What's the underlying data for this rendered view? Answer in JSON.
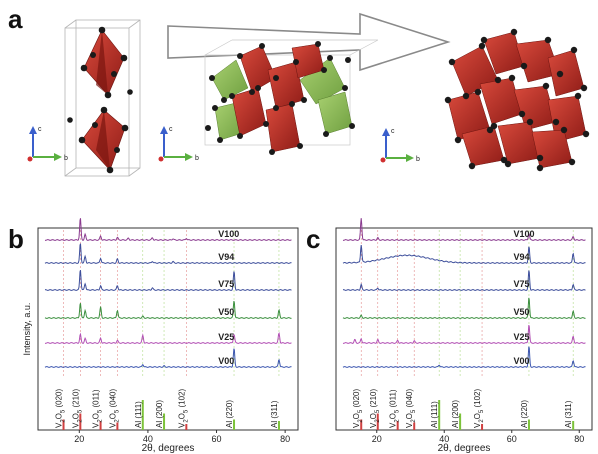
{
  "figure": {
    "panel_labels": [
      "a",
      "b",
      "c"
    ],
    "axes_triads": [
      {
        "c": "c",
        "b": "b"
      },
      {
        "c": "c",
        "b": "b"
      },
      {
        "c": "c",
        "b": "b"
      }
    ],
    "colors": {
      "octahedron_red": "#c0322a",
      "octahedron_dark": "#8e1c17",
      "octahedron_green": "#8fbf5a",
      "atom_black": "#1a1a1a",
      "arrow_outline": "#8a8a8a"
    }
  },
  "chart_data": [
    {
      "panel": "b",
      "type": "line",
      "xlabel": "2θ, degrees",
      "ylabel": "Intensity, a.u.",
      "xlim": [
        10,
        82
      ],
      "x_ticks": [
        "20",
        "40",
        "60",
        "80"
      ],
      "series": [
        {
          "name": "V100",
          "color": "#8a3a8f",
          "peaks": [
            [
              20.3,
              1.0
            ],
            [
              21.7,
              0.25
            ],
            [
              26.2,
              0.18
            ],
            [
              31.1,
              0.12
            ],
            [
              34.3,
              0.08
            ],
            [
              41.3,
              0.1
            ],
            [
              47.3,
              0.06
            ],
            [
              51.2,
              0.08
            ]
          ]
        },
        {
          "name": "V94",
          "color": "#3d4e9b",
          "peaks": [
            [
              20.3,
              0.9
            ],
            [
              21.7,
              0.3
            ],
            [
              26.2,
              0.22
            ],
            [
              31.1,
              0.18
            ],
            [
              41.3,
              0.08
            ],
            [
              47.3,
              0.06
            ]
          ]
        },
        {
          "name": "V75",
          "color": "#3d4e9b",
          "peaks": [
            [
              20.3,
              0.95
            ],
            [
              21.7,
              0.3
            ],
            [
              26.2,
              0.2
            ],
            [
              31.1,
              0.2
            ],
            [
              41.3,
              0.1
            ],
            [
              65.1,
              0.85
            ]
          ]
        },
        {
          "name": "V50",
          "color": "#3b8f3e",
          "peaks": [
            [
              20.3,
              0.7
            ],
            [
              21.7,
              0.35
            ],
            [
              26.2,
              0.5
            ],
            [
              31.1,
              0.35
            ],
            [
              38.5,
              0.08
            ],
            [
              65.1,
              0.8
            ],
            [
              78.2,
              0.35
            ]
          ]
        },
        {
          "name": "V25",
          "color": "#b24fb4",
          "peaks": [
            [
              20.3,
              0.4
            ],
            [
              21.7,
              0.2
            ],
            [
              26.2,
              0.22
            ],
            [
              31.1,
              0.12
            ],
            [
              38.5,
              0.35
            ],
            [
              65.1,
              0.4
            ],
            [
              78.2,
              0.45
            ]
          ]
        },
        {
          "name": "V00",
          "color": "#3d57b0",
          "peaks": [
            [
              38.5,
              0.12
            ],
            [
              44.7,
              0.05
            ],
            [
              65.1,
              0.85
            ],
            [
              78.2,
              0.35
            ]
          ]
        }
      ],
      "references": [
        {
          "label_pre": "V",
          "sub1": "2",
          "mid": "O",
          "sub2": "5",
          "hkl": "(020)",
          "x": 15.4,
          "height": 0.35,
          "color": "#d04040"
        },
        {
          "label_pre": "V",
          "sub1": "2",
          "mid": "O",
          "sub2": "5",
          "hkl": "(210)",
          "x": 20.3,
          "height": 0.55,
          "color": "#d04040"
        },
        {
          "label_pre": "V",
          "sub1": "2",
          "mid": "O",
          "sub2": "5",
          "hkl": "(011)",
          "x": 26.2,
          "height": 0.3,
          "color": "#d04040"
        },
        {
          "label_pre": "V",
          "sub1": "2",
          "mid": "O",
          "sub2": "5",
          "hkl": "(040)",
          "x": 31.1,
          "height": 0.25,
          "color": "#d04040"
        },
        {
          "label_pre": "Al ",
          "sub1": "",
          "mid": "",
          "sub2": "",
          "hkl": "(111)",
          "x": 38.5,
          "height": 1.0,
          "color": "#7cc23a"
        },
        {
          "label_pre": "Al ",
          "sub1": "",
          "mid": "",
          "sub2": "",
          "hkl": "(200)",
          "x": 44.7,
          "height": 0.55,
          "color": "#7cc23a"
        },
        {
          "label_pre": "V",
          "sub1": "2",
          "mid": "O",
          "sub2": "5",
          "hkl": "(102)",
          "x": 51.2,
          "height": 0.2,
          "color": "#d04040"
        },
        {
          "label_pre": "Al ",
          "sub1": "",
          "mid": "",
          "sub2": "",
          "hkl": "(220)",
          "x": 65.1,
          "height": 0.35,
          "color": "#7cc23a"
        },
        {
          "label_pre": "Al ",
          "sub1": "",
          "mid": "",
          "sub2": "",
          "hkl": "(311)",
          "x": 78.2,
          "height": 0.3,
          "color": "#7cc23a"
        }
      ]
    },
    {
      "panel": "c",
      "type": "line",
      "xlabel": "2θ, degrees",
      "ylabel": "",
      "xlim": [
        10,
        82
      ],
      "x_ticks": [
        "20",
        "40",
        "60",
        "80"
      ],
      "series": [
        {
          "name": "V100",
          "color": "#8a3a8f",
          "peaks": [
            [
              15.4,
              1.0
            ],
            [
              20.3,
              0.1
            ],
            [
              65.1,
              0.3
            ],
            [
              78.2,
              0.15
            ]
          ]
        },
        {
          "name": "V94",
          "color": "#3d4e9b",
          "peaks": [
            [
              15.4,
              0.8
            ],
            [
              65.1,
              0.75
            ],
            [
              78.2,
              0.45
            ]
          ],
          "hump": {
            "center": 29,
            "width": 9,
            "height": 0.35
          }
        },
        {
          "name": "V75",
          "color": "#3d4e9b",
          "peaks": [
            [
              15.4,
              0.25
            ],
            [
              20.3,
              0.1
            ],
            [
              65.1,
              0.9
            ],
            [
              78.2,
              0.25
            ]
          ]
        },
        {
          "name": "V50",
          "color": "#3b8f3e",
          "peaks": [
            [
              15.4,
              0.12
            ],
            [
              65.1,
              0.95
            ],
            [
              78.2,
              0.3
            ]
          ]
        },
        {
          "name": "V25",
          "color": "#b24fb4",
          "peaks": [
            [
              13.5,
              0.15
            ],
            [
              15.4,
              0.2
            ],
            [
              20.3,
              0.15
            ],
            [
              26.2,
              0.12
            ],
            [
              31.1,
              0.1
            ],
            [
              65.1,
              0.85
            ],
            [
              78.2,
              0.3
            ]
          ]
        },
        {
          "name": "V00",
          "color": "#3d57b0",
          "peaks": [
            [
              38.5,
              0.1
            ],
            [
              65.1,
              0.95
            ],
            [
              78.2,
              0.3
            ]
          ]
        }
      ],
      "references": [
        {
          "label_pre": "V",
          "sub1": "2",
          "mid": "O",
          "sub2": "5",
          "hkl": "(020)",
          "x": 15.4,
          "height": 0.35,
          "color": "#d04040"
        },
        {
          "label_pre": "V",
          "sub1": "2",
          "mid": "O",
          "sub2": "5",
          "hkl": "(210)",
          "x": 20.3,
          "height": 0.55,
          "color": "#d04040"
        },
        {
          "label_pre": "V",
          "sub1": "2",
          "mid": "O",
          "sub2": "5",
          "hkl": "(011)",
          "x": 26.2,
          "height": 0.3,
          "color": "#d04040"
        },
        {
          "label_pre": "V",
          "sub1": "2",
          "mid": "O",
          "sub2": "5",
          "hkl": "(040)",
          "x": 31.1,
          "height": 0.25,
          "color": "#d04040"
        },
        {
          "label_pre": "Al ",
          "sub1": "",
          "mid": "",
          "sub2": "",
          "hkl": "(111)",
          "x": 38.5,
          "height": 1.0,
          "color": "#7cc23a"
        },
        {
          "label_pre": "Al ",
          "sub1": "",
          "mid": "",
          "sub2": "",
          "hkl": "(200)",
          "x": 44.7,
          "height": 0.55,
          "color": "#7cc23a"
        },
        {
          "label_pre": "V",
          "sub1": "2",
          "mid": "O",
          "sub2": "5",
          "hkl": "(102)",
          "x": 51.2,
          "height": 0.2,
          "color": "#d04040"
        },
        {
          "label_pre": "Al ",
          "sub1": "",
          "mid": "",
          "sub2": "",
          "hkl": "(220)",
          "x": 65.1,
          "height": 0.35,
          "color": "#7cc23a"
        },
        {
          "label_pre": "Al ",
          "sub1": "",
          "mid": "",
          "sub2": "",
          "hkl": "(311)",
          "x": 78.2,
          "height": 0.3,
          "color": "#7cc23a"
        }
      ]
    }
  ]
}
